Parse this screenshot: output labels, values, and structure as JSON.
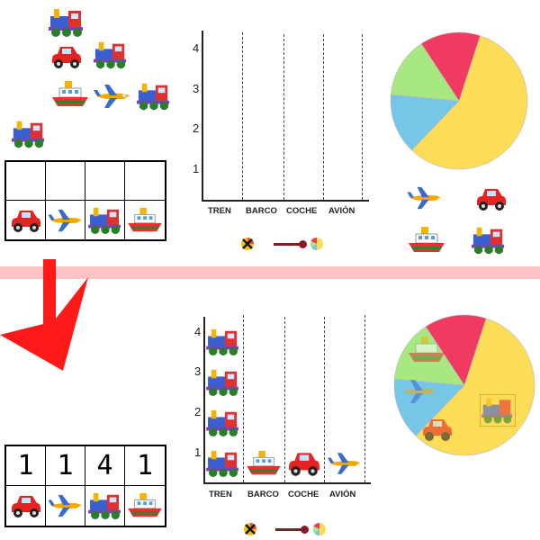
{
  "colors": {
    "band": "#ffc2c2",
    "arrow": "#ff1a1a",
    "pie_yellow": "#fddd58",
    "pie_red": "#f03a5f",
    "pie_green": "#a8e880",
    "pie_blue": "#76c6e8"
  },
  "icons": {
    "train": "train-icon",
    "car": "car-icon",
    "plane": "plane-icon",
    "boat": "boat-icon",
    "legend_cross": "cross-icon",
    "legend_pie": "pie-mini-icon"
  },
  "chart_data": [
    {
      "type": "bar",
      "categories": [
        "TREN",
        "BARCO",
        "COCHE",
        "AVIÓN"
      ],
      "ylim": [
        0,
        4
      ],
      "yticks": [
        "1",
        "2",
        "3",
        "4"
      ],
      "values": [
        0,
        0,
        0,
        0
      ]
    },
    {
      "type": "bar",
      "categories": [
        "TREN",
        "BARCO",
        "COCHE",
        "AVIÓN"
      ],
      "ylim": [
        0,
        4
      ],
      "yticks": [
        "1",
        "2",
        "3",
        "4"
      ],
      "values": [
        4,
        1,
        1,
        1
      ]
    },
    {
      "type": "pie",
      "categories": [
        "yellow",
        "blue",
        "green",
        "red"
      ],
      "values": [
        4,
        1,
        1,
        1
      ]
    }
  ],
  "table_bottom": {
    "counts": [
      "1",
      "1",
      "4",
      "1"
    ]
  }
}
